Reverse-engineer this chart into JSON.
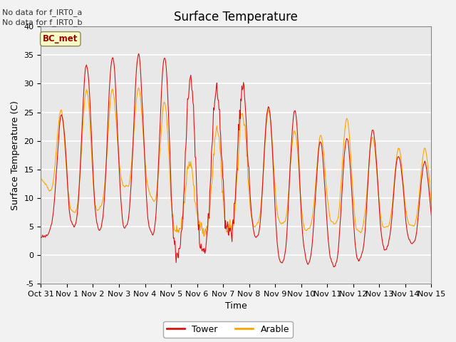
{
  "title": "Surface Temperature",
  "xlabel": "Time",
  "ylabel": "Surface Temperature (C)",
  "ylim": [
    -5,
    40
  ],
  "yticks": [
    -5,
    0,
    5,
    10,
    15,
    20,
    25,
    30,
    35,
    40
  ],
  "xtick_labels": [
    "Oct 31",
    "Nov 1",
    "Nov 2",
    "Nov 3",
    "Nov 4",
    "Nov 5",
    "Nov 6",
    "Nov 7",
    "Nov 8",
    "Nov 9",
    "Nov 10",
    "Nov 11",
    "Nov 12",
    "Nov 13",
    "Nov 14",
    "Nov 15"
  ],
  "note_lines": [
    "No data for f_IRT0_a",
    "No data for f_IRT0_b"
  ],
  "bc_met_label": "BC_met",
  "legend_entries": [
    "Tower",
    "Arable"
  ],
  "tower_color": "#DD1111",
  "arable_color": "#FFA500",
  "background_color": "#E8E8E8",
  "plot_bg_color": "#E8E8E8",
  "grid_color": "#FFFFFF",
  "title_fontsize": 12,
  "axis_fontsize": 9,
  "tick_fontsize": 8,
  "note_fontsize": 8,
  "legend_fontsize": 9,
  "n_days": 15
}
